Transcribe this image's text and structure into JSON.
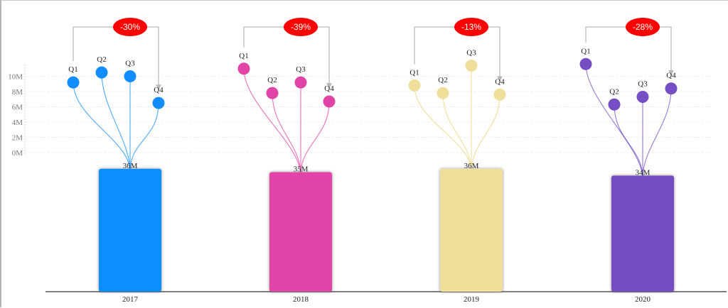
{
  "chart_data": {
    "type": "bar",
    "categories": [
      "2017",
      "2018",
      "2019",
      "2020"
    ],
    "totals": [
      36,
      35,
      36,
      34
    ],
    "total_labels": [
      "36M",
      "35M",
      "36M",
      "34M"
    ],
    "quarter_labels": [
      "Q1",
      "Q2",
      "Q3",
      "Q4"
    ],
    "quarterly_values": [
      [
        9.2,
        10.5,
        10.0,
        6.5
      ],
      [
        11.0,
        7.8,
        9.2,
        6.7
      ],
      [
        8.8,
        7.8,
        11.4,
        7.6
      ],
      [
        11.6,
        6.3,
        7.3,
        8.4
      ]
    ],
    "changes": [
      "-30%",
      "-39%",
      "-13%",
      "-28%"
    ],
    "y_ticks": [
      "0M",
      "2M",
      "4M",
      "6M",
      "8M",
      "10M"
    ],
    "y_tick_values": [
      0,
      2,
      4,
      6,
      8,
      10
    ],
    "ylim": [
      0,
      12
    ],
    "grid": true,
    "colors": [
      "#118dff",
      "#e044a7",
      "#efdf9a",
      "#744ec2"
    ],
    "badge_color": "#ff0000"
  }
}
